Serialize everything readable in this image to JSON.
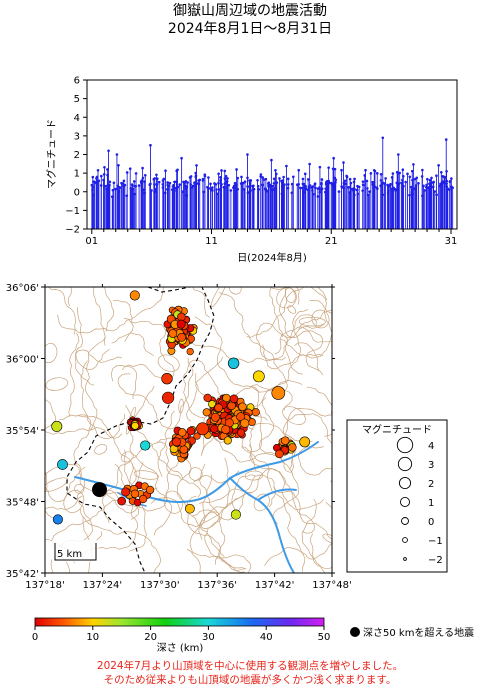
{
  "header": {
    "title": "御嶽山周辺域の地震活動",
    "subtitle": "2024年8月1日～8月31日"
  },
  "chart_data": [
    {
      "type": "bar",
      "ylabel": "マグニチュード",
      "xlabel": "日(2024年8月)",
      "xlim": [
        0.6,
        31.5
      ],
      "ylim": [
        -2,
        6
      ],
      "xticks": [
        "01",
        "11",
        "21",
        "31"
      ],
      "xtick_values": [
        1,
        11,
        21,
        31
      ],
      "yticks": [
        "−2",
        "−1",
        "0",
        "1",
        "2",
        "3",
        "4",
        "5",
        "6"
      ],
      "ytick_values": [
        -2,
        -1,
        0,
        1,
        2,
        3,
        4,
        5,
        6
      ],
      "series_color": "#1f1fe6",
      "notable_events": [
        {
          "day": 2.4,
          "magnitude": 2.2
        },
        {
          "day": 3.1,
          "magnitude": 2.0
        },
        {
          "day": 5.9,
          "magnitude": 2.5
        },
        {
          "day": 8.5,
          "magnitude": 1.8
        },
        {
          "day": 14.0,
          "magnitude": 2.0
        },
        {
          "day": 16.0,
          "magnitude": 1.7
        },
        {
          "day": 21.2,
          "magnitude": 1.8
        },
        {
          "day": 25.3,
          "magnitude": 2.9
        },
        {
          "day": 26.6,
          "magnitude": 2.0
        },
        {
          "day": 30.6,
          "magnitude": 2.8
        }
      ]
    },
    {
      "type": "scatter",
      "subtype": "epicenter-map",
      "xlim": [
        137.3,
        137.8
      ],
      "ylim": [
        35.7,
        36.1
      ],
      "xticks": [
        "137°18'",
        "137°24'",
        "137°30'",
        "137°36'",
        "137°42'",
        "137°48'"
      ],
      "xtick_values": [
        137.3,
        137.4,
        137.5,
        137.6,
        137.7,
        137.8
      ],
      "yticks": [
        "35°42'",
        "35°48'",
        "35°54'",
        "36°00'",
        "36°06'"
      ],
      "ytick_values": [
        35.7,
        35.8,
        35.9,
        36.0,
        36.1
      ],
      "scale_bar": "5 km",
      "color_axis": {
        "label": "深さ (km)",
        "range": [
          0,
          50
        ],
        "ticks": [
          "0",
          "10",
          "20",
          "30",
          "40",
          "50"
        ]
      },
      "deep_marker_label": "深さ50 kmを超える地震",
      "notable_points": [
        {
          "lon": 137.395,
          "lat": 35.8167,
          "depth_km": 55,
          "magnitude": 3.5
        },
        {
          "lon": 137.7065,
          "lat": 35.9517,
          "depth_km": 8,
          "magnitude": 2.9
        },
        {
          "lon": 137.5745,
          "lat": 35.9017,
          "depth_km": 3,
          "magnitude": 2.5
        },
        {
          "lon": 137.5145,
          "lat": 35.945,
          "depth_km": 2,
          "magnitude": 2.2
        },
        {
          "lon": 137.6725,
          "lat": 35.975,
          "depth_km": 15,
          "magnitude": 2.0
        },
        {
          "lon": 137.6285,
          "lat": 35.9933,
          "depth_km": 32,
          "magnitude": 1.8
        },
        {
          "lon": 137.5125,
          "lat": 35.9717,
          "depth_km": 3,
          "magnitude": 1.8
        },
        {
          "lon": 137.3205,
          "lat": 35.905,
          "depth_km": 18,
          "magnitude": 1.6
        },
        {
          "lon": 137.3305,
          "lat": 35.8517,
          "depth_km": 32,
          "magnitude": 1.5
        },
        {
          "lon": 137.3225,
          "lat": 35.775,
          "depth_km": 38,
          "magnitude": 1.2
        },
        {
          "lon": 137.4745,
          "lat": 35.8783,
          "depth_km": 30,
          "magnitude": 1.2
        },
        {
          "lon": 137.4565,
          "lat": 36.0883,
          "depth_km": 8,
          "magnitude": 1.2
        },
        {
          "lon": 137.7525,
          "lat": 35.8833,
          "depth_km": 12,
          "magnitude": 1.5
        },
        {
          "lon": 137.6325,
          "lat": 35.7817,
          "depth_km": 18,
          "magnitude": 1.2
        },
        {
          "lon": 137.5525,
          "lat": 35.79,
          "depth_km": 12,
          "magnitude": 1.0
        }
      ],
      "clusters": [
        {
          "lon": 137.535,
          "lat": 36.04,
          "spread_lon": 0.03,
          "spread_lat": 0.035,
          "count": 95
        },
        {
          "lon": 137.62,
          "lat": 35.915,
          "spread_lon": 0.05,
          "spread_lat": 0.04,
          "count": 170
        },
        {
          "lon": 137.455,
          "lat": 35.9085,
          "spread_lon": 0.012,
          "spread_lat": 0.008,
          "count": 50
        },
        {
          "lon": 137.54,
          "lat": 35.88,
          "spread_lon": 0.03,
          "spread_lat": 0.04,
          "count": 40
        },
        {
          "lon": 137.72,
          "lat": 35.875,
          "spread_lon": 0.02,
          "spread_lat": 0.02,
          "count": 18
        },
        {
          "lon": 137.455,
          "lat": 35.81,
          "spread_lon": 0.05,
          "spread_lat": 0.02,
          "count": 18
        }
      ],
      "legend": {
        "title": "マグニチュード",
        "entries": [
          {
            "label": "4",
            "magnitude": 4
          },
          {
            "label": "3",
            "magnitude": 3
          },
          {
            "label": "2",
            "magnitude": 2
          },
          {
            "label": "1",
            "magnitude": 1
          },
          {
            "label": "0",
            "magnitude": 0
          },
          {
            "label": "−1",
            "magnitude": -1
          },
          {
            "label": "−2",
            "magnitude": -2
          }
        ]
      },
      "colors": {
        "river": "#3f9ae6",
        "contour": "#c9a47d",
        "boundary": "#000000"
      }
    }
  ],
  "notes": {
    "line1": "2024年7月より山頂域を中心に使用する観測点を増やしました。",
    "line2": "そのため従来よりも山頂域の地震が多くかつ浅く求まります。"
  }
}
